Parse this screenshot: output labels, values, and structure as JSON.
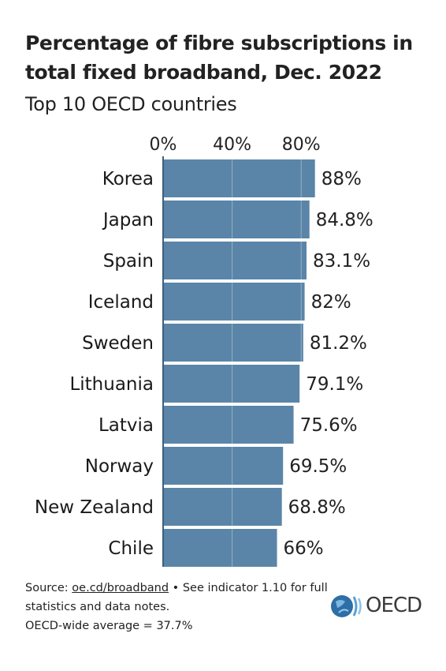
{
  "title": "Percentage of fibre subscriptions in total fixed broadband, Dec. 2022",
  "subtitle": "Top 10 OECD countries",
  "chart_data": {
    "type": "bar",
    "orientation": "horizontal",
    "title": "Percentage of fibre subscriptions in total fixed broadband, Dec. 2022",
    "subtitle": "Top 10 OECD countries",
    "categories": [
      "Korea",
      "Japan",
      "Spain",
      "Iceland",
      "Sweden",
      "Lithuania",
      "Latvia",
      "Norway",
      "New Zealand",
      "Chile"
    ],
    "values": [
      88,
      84.8,
      83.1,
      82,
      81.2,
      79.1,
      75.6,
      69.5,
      68.8,
      66
    ],
    "value_labels": [
      "88%",
      "84.8%",
      "83.1%",
      "82%",
      "81.2%",
      "79.1%",
      "75.6%",
      "69.5%",
      "68.8%",
      "66%"
    ],
    "xticks": [
      0,
      40,
      80
    ],
    "xtick_labels": [
      "0%",
      "40%",
      "80%"
    ],
    "xlim": [
      0,
      88
    ],
    "grid": true,
    "bar_color": "#5a85a8",
    "xlabel": "",
    "ylabel": ""
  },
  "source": {
    "prefix": "Source: ",
    "link": "oe.cd/broadband",
    "suffix": " • See indicator 1.10 for full statistics and data notes.",
    "average_note": "OECD-wide average = 37.7%"
  },
  "logo": {
    "text": "OECD",
    "icon": "oecd-globe-icon"
  }
}
